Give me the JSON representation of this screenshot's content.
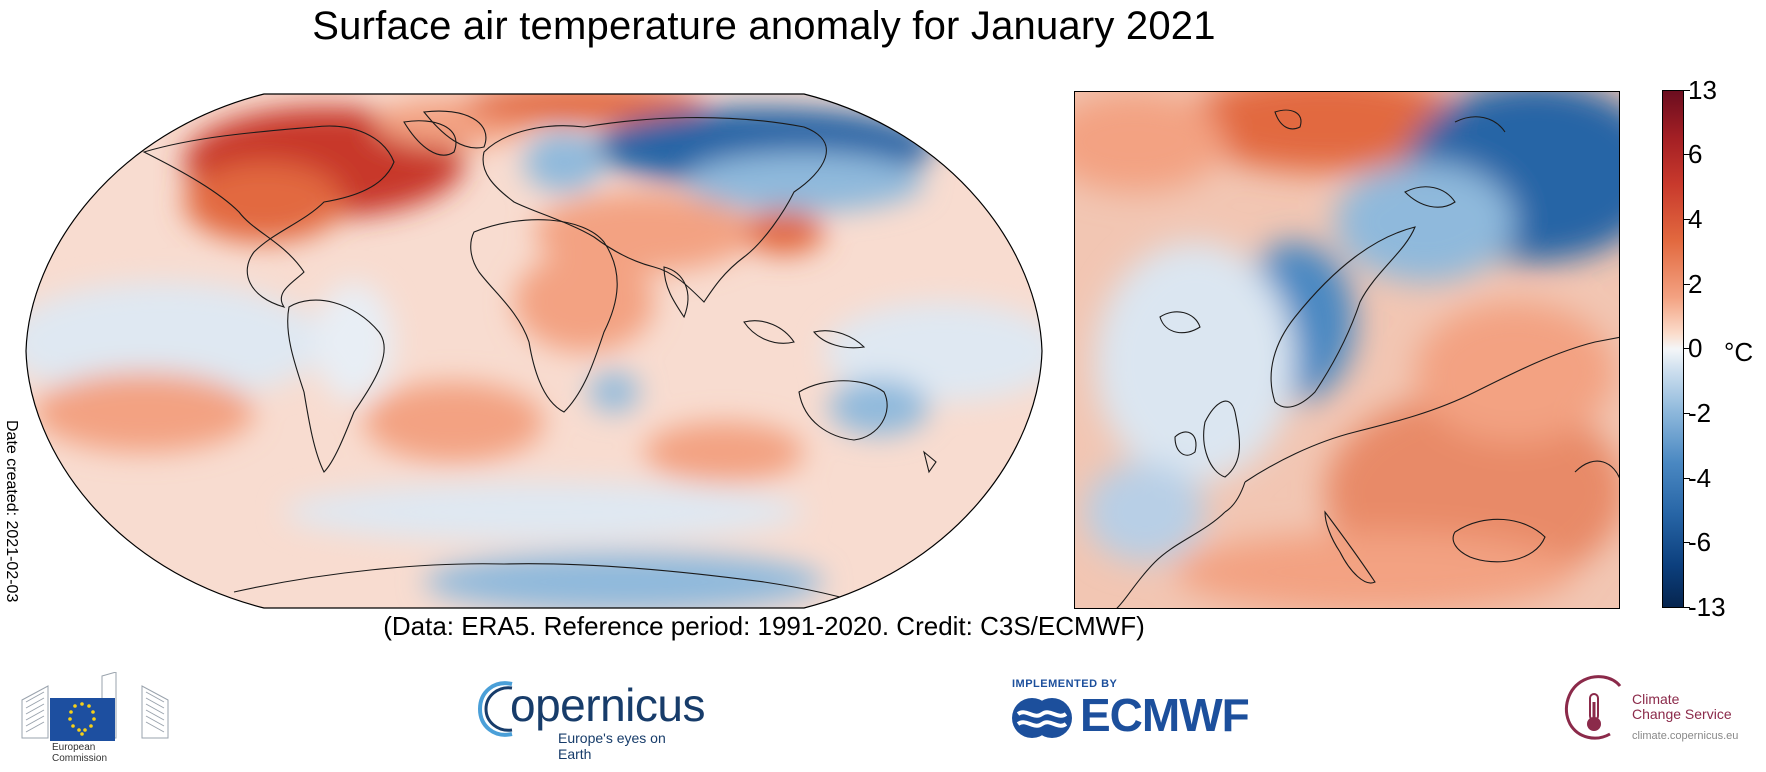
{
  "title": "Surface air temperature anomaly for January 2021",
  "credit": "(Data: ERA5.  Reference period: 1991-2020.  Credit: C3S/ECMWF)",
  "date_created": "Date created: 2021-02-03",
  "colorbar": {
    "ticks": [
      "13",
      "6",
      "4",
      "2",
      "0",
      "-2",
      "-4",
      "-6",
      "-13"
    ],
    "unit": "°C",
    "colors": [
      "#6b0d1f",
      "#c8392c",
      "#f3a282",
      "#f4f6f8",
      "#8fb9dc",
      "#2765a6",
      "#06254f"
    ]
  },
  "maps": [
    {
      "name": "global",
      "projection": "robinson"
    },
    {
      "name": "europe",
      "projection": "regional"
    }
  ],
  "logos": {
    "european_commission": {
      "line1": "European",
      "line2": "Commission"
    },
    "copernicus": {
      "name": "opernicus",
      "tagline": "Europe's eyes on Earth"
    },
    "ecmwf": {
      "implemented_by": "IMPLEMENTED BY",
      "name": "ECMWF"
    },
    "c3s": {
      "line1": "Climate",
      "line2": "Change Service",
      "url": "climate.copernicus.eu"
    }
  }
}
